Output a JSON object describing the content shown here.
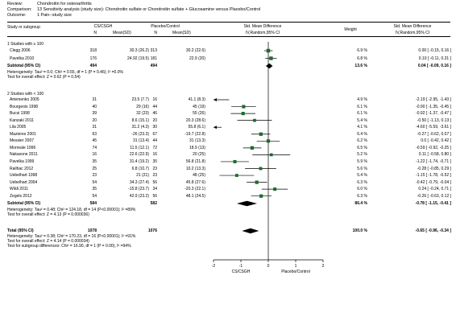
{
  "review": {
    "label": "Review:",
    "value": "Chondroitin for osteoarthritis"
  },
  "comparison": {
    "label": "Comparison:",
    "value": "13 Sensitivity analysis (study size): Chondroitin sulfate or Chondroitin sulfate + Glucosamine versus Placebo/Control"
  },
  "outcome": {
    "label": "Outcome:",
    "value": "1 Pain--study size"
  },
  "columns": {
    "study": "Study or subgroup",
    "exp_group": "CS/CSGH",
    "ctl_group": "Placebo/Control",
    "n": "N",
    "mean_sd": "Mean(SD)",
    "smd_title": "Std. Mean Difference",
    "smd_method": "IV,Random,95% CI",
    "weight": "Weight"
  },
  "groups": [
    {
      "title": "1 Studies with ≥ 100",
      "studies": [
        {
          "name": "Clegg 2006",
          "n1": "318",
          "m1": "30.3 (26.2)",
          "n2": "313",
          "m2": "30.2 (22.6)",
          "weight": "6.9 %",
          "ci": "0.00 [ -0.15, 0.16 ]"
        },
        {
          "name": "Pavelka 2010",
          "n1": "176",
          "m1": "24.92 (19.5)",
          "n2": "181",
          "m2": "22.9 (20)",
          "weight": "6.8 %",
          "ci": "0.10 [ -0.11, 0.31 ]"
        }
      ],
      "subtotal": {
        "label": "Subtotal (95% CI)",
        "n1": "494",
        "n2": "494",
        "weight": "13.6 %",
        "ci": "0.04 [ -0.09, 0.16 ]"
      },
      "heterogeneity": "Heterogeneity: Tau² = 0.0; Chi² = 0.55, df = 1 (P = 0.46); I² =0.0%",
      "overall": "Test for overall effect: Z = 0.62 (P = 0.54)"
    },
    {
      "title": "2 Studies with < 100",
      "studies": [
        {
          "name": "Artemenko 2005",
          "n1": "31",
          "m1": "23.5 (7.7)",
          "n2": "16",
          "m2": "41.1 (8.3)",
          "weight": "4.9 %",
          "ci": "-2.19 [ -2.95, -1.43 ]"
        },
        {
          "name": "Bourgeois 1998",
          "n1": "40",
          "m1": "29 (16)",
          "n2": "44",
          "m2": "45 (19)",
          "weight": "6.1 %",
          "ci": "-0.90 [ -1.35, -0.45 ]"
        },
        {
          "name": "Bucsi 1998",
          "n1": "39",
          "m1": "32 (23)",
          "n2": "46",
          "m2": "55 (26)",
          "weight": "6.1 %",
          "ci": "-0.92 [ -1.37, -0.47 ]"
        },
        {
          "name": "Kanzaki 2011",
          "n1": "20",
          "m1": "8.6 (15.1)",
          "n2": "20",
          "m2": "20.3 (28.6)",
          "weight": "5.4 %",
          "ci": "-0.50 [ -1.13, 0.13 ]"
        },
        {
          "name": "Lila 2005",
          "n1": "31",
          "m1": "31.2 (4.3)",
          "n2": "30",
          "m2": "55.8 (6.1)",
          "weight": "4.1 %",
          "ci": "-4.60 [ -5.59, -3.61 ]"
        },
        {
          "name": "Mazieres 2001",
          "n1": "63",
          "m1": "-26 (23.3)",
          "n2": "67",
          "m2": "-19.7 (22.8)",
          "weight": "6.4 %",
          "ci": "-0.27 [ -0.62, 0.07 ]"
        },
        {
          "name": "Messier 2007",
          "n1": "45",
          "m1": "31 (13.4)",
          "n2": "44",
          "m2": "31 (13.3)",
          "weight": "6.2 %",
          "ci": "0.0 [ -0.42, 0.42 ]"
        },
        {
          "name": "Morreale 1996",
          "n1": "74",
          "m1": "11.5 (12.1)",
          "n2": "72",
          "m2": "18.9 (13)",
          "weight": "6.5 %",
          "ci": "-0.59 [ -0.92, -0.25 ]"
        },
        {
          "name": "Nakasone 2011",
          "n1": "16",
          "m1": "22.6 (22.9)",
          "n2": "16",
          "m2": "20 (25)",
          "weight": "5.2 %",
          "ci": "0.11 [ -0.58, 0.80 ]"
        },
        {
          "name": "Pavelka 1999",
          "n1": "35",
          "m1": "31.4 (19.2)",
          "n2": "35",
          "m2": "56.8 (21.8)",
          "weight": "5.9 %",
          "ci": "-1.22 [ -1.74, -0.71 ]"
        },
        {
          "name": "Railhac 2012",
          "n1": "25",
          "m1": "6.8 (10.7)",
          "n2": "23",
          "m2": "10.2 (13.3)",
          "weight": "5.6 %",
          "ci": "-0.28 [ -0.85, 0.29 ]"
        },
        {
          "name": "Uebelhart 1998",
          "n1": "23",
          "m1": "21 (21)",
          "n2": "23",
          "m2": "48 (25)",
          "weight": "5.4 %",
          "ci": "-1.15 [ -1.78, -0.52 ]"
        },
        {
          "name": "Uebelhart 2004",
          "n1": "54",
          "m1": "34.3 (27.4)",
          "n2": "56",
          "m2": "45.8 (27.6)",
          "weight": "6.3 %",
          "ci": "-0.42 [ -0.79, -0.04 ]"
        },
        {
          "name": "Wildi 2011",
          "n1": "35",
          "m1": "-15.8 (23.7)",
          "n2": "34",
          "m2": "-20.3 (22.1)",
          "weight": "6.0 %",
          "ci": "0.24 [ -0.24, 0.71 ]"
        },
        {
          "name": "Zegels 2012",
          "n1": "54",
          "m1": "42.9 (23.2)",
          "n2": "56",
          "m2": "48.1 (24.5)",
          "weight": "6.3 %",
          "ci": "-0.26 [ -0.63, 0.12 ]"
        }
      ],
      "subtotal": {
        "label": "Subtotal (95% CI)",
        "n1": "584",
        "n2": "582",
        "weight": "86.4 %",
        "ci": "-0.78 [ -1.15, -0.41 ]"
      },
      "heterogeneity": "Heterogeneity: Tau² = 0.48; Chi² = 124.18, df = 14 (P<0.00001); I² =89%",
      "overall": "Test for overall effect: Z = 4.13 (P = 0.000036)"
    }
  ],
  "total": {
    "label": "Total (95% CI)",
    "n1": "1078",
    "n2": "1076",
    "weight": "100.0 %",
    "ci": "-0.65 [ -0.96, -0.34 ]"
  },
  "total_het": "Heterogeneity: Tau² = 0.38; Chi² = 170.23, df = 16 (P<0.00001); I² =91%",
  "total_overall": "Test for overall effect: Z = 4.14 (P = 0.000034)",
  "subgroup_diff": "Test for subgroup differences: Chi² = 16.90, df = 1 (P = 0.00), I² =94%",
  "axis_favours": {
    "left": "CS/CSGH",
    "right": "Placebo/Control"
  },
  "chart_data": {
    "type": "forest",
    "xlim": [
      -2,
      2
    ],
    "ticks": [
      "-2",
      "-1",
      "0",
      "1",
      "2"
    ],
    "tick_values": [
      -2,
      -1,
      0,
      1,
      2
    ],
    "study_color": "#1e6b2e",
    "study_points": [
      {
        "est": 0.0,
        "lo": -0.15,
        "hi": 0.16,
        "w": 6.9
      },
      {
        "est": 0.1,
        "lo": -0.11,
        "hi": 0.31,
        "w": 6.8
      },
      {
        "est": -2.19,
        "lo": -2.95,
        "hi": -1.43,
        "w": 4.9
      },
      {
        "est": -0.9,
        "lo": -1.35,
        "hi": -0.45,
        "w": 6.1
      },
      {
        "est": -0.92,
        "lo": -1.37,
        "hi": -0.47,
        "w": 6.1
      },
      {
        "est": -0.5,
        "lo": -1.13,
        "hi": 0.13,
        "w": 5.4
      },
      {
        "est": -4.6,
        "lo": -5.59,
        "hi": -3.61,
        "w": 4.1
      },
      {
        "est": -0.27,
        "lo": -0.62,
        "hi": 0.07,
        "w": 6.4
      },
      {
        "est": 0.0,
        "lo": -0.42,
        "hi": 0.42,
        "w": 6.2
      },
      {
        "est": -0.59,
        "lo": -0.92,
        "hi": -0.25,
        "w": 6.5
      },
      {
        "est": 0.11,
        "lo": -0.58,
        "hi": 0.8,
        "w": 5.2
      },
      {
        "est": -1.22,
        "lo": -1.74,
        "hi": -0.71,
        "w": 5.9
      },
      {
        "est": -0.28,
        "lo": -0.85,
        "hi": 0.29,
        "w": 5.6
      },
      {
        "est": -1.15,
        "lo": -1.78,
        "hi": -0.52,
        "w": 5.4
      },
      {
        "est": -0.42,
        "lo": -0.79,
        "hi": -0.04,
        "w": 6.3
      },
      {
        "est": 0.24,
        "lo": -0.24,
        "hi": 0.71,
        "w": 6.0
      },
      {
        "est": -0.26,
        "lo": -0.63,
        "hi": 0.12,
        "w": 6.3
      }
    ],
    "diamonds": [
      {
        "est": 0.04,
        "lo": -0.09,
        "hi": 0.16
      },
      {
        "est": -0.78,
        "lo": -1.15,
        "hi": -0.41
      },
      {
        "est": -0.65,
        "lo": -0.96,
        "hi": -0.34
      }
    ]
  }
}
